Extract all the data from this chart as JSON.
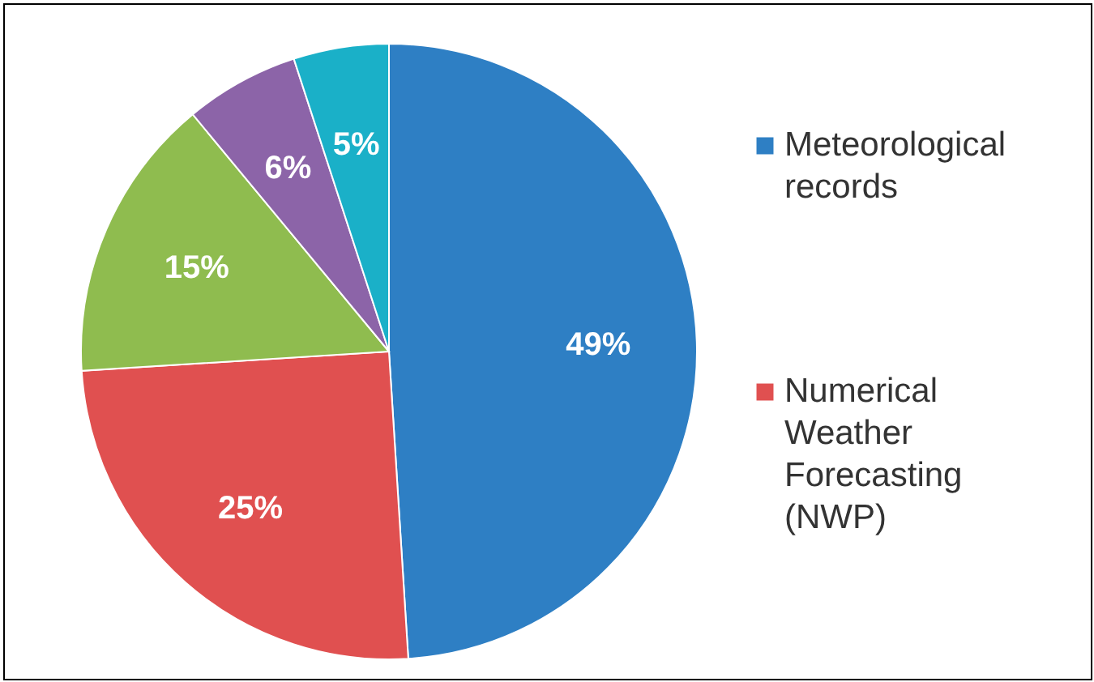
{
  "chart_data": {
    "type": "pie",
    "categories": [
      "Meteorological records",
      "Numerical Weather Forecasting (NWP)",
      null,
      null,
      null
    ],
    "values": [
      49,
      25,
      15,
      6,
      5
    ],
    "colors": [
      "#2e7fc4",
      "#e05050",
      "#8fbc4f",
      "#8c64a8",
      "#1ab0c8"
    ],
    "value_labels": [
      "49%",
      "25%",
      "15%",
      "6%",
      "5%"
    ],
    "legend": "right"
  }
}
